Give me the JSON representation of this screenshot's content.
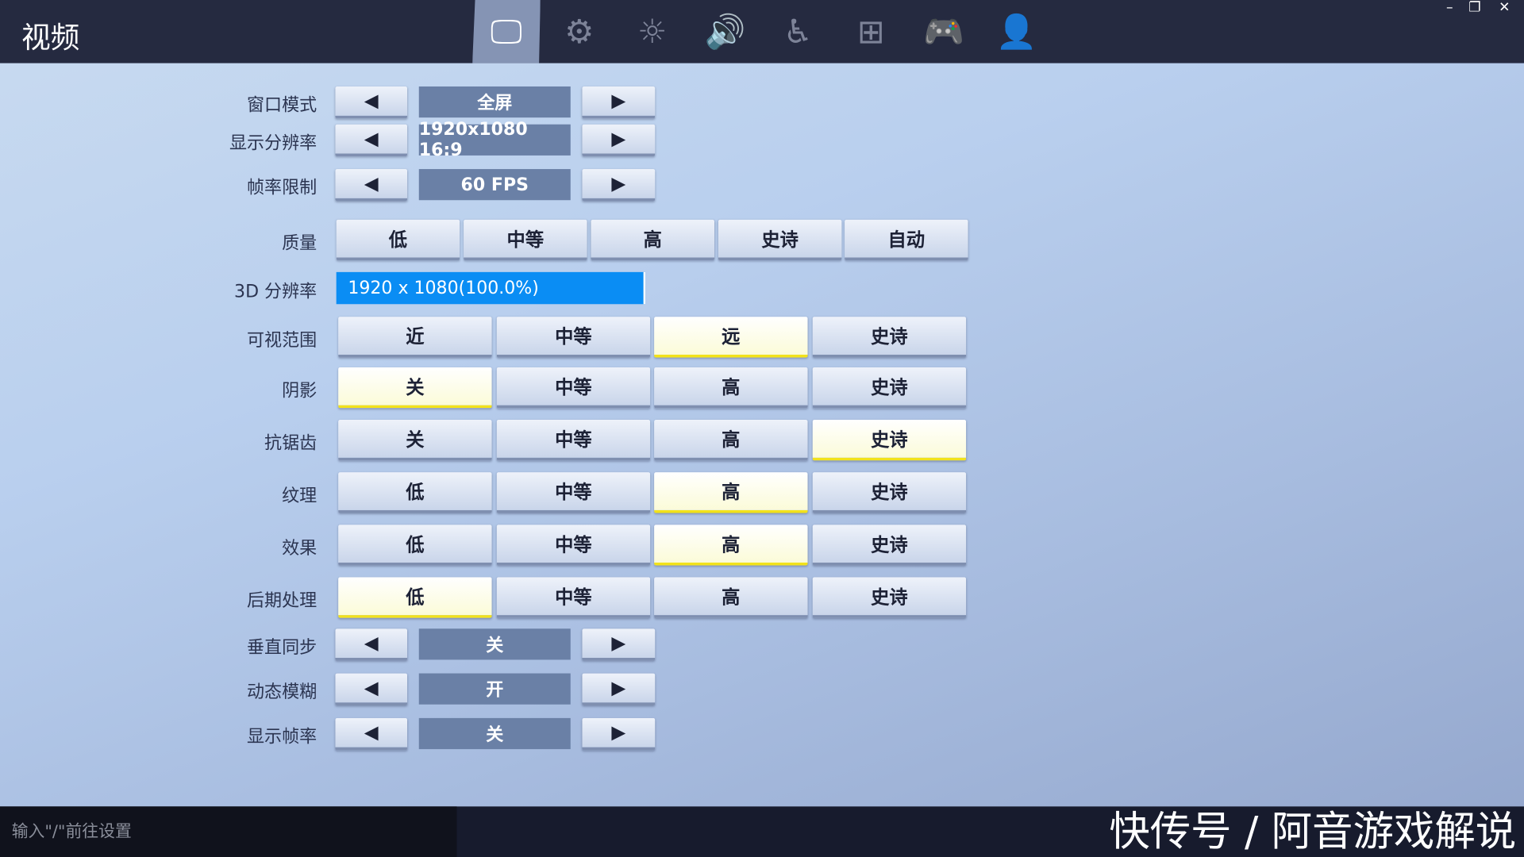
{
  "header": {
    "title": "视频",
    "tabs": [
      {
        "icon": "monitor-icon",
        "glyph": "🖵",
        "active": true
      },
      {
        "icon": "gear-icon",
        "glyph": "⚙"
      },
      {
        "icon": "brightness-icon",
        "glyph": "☼"
      },
      {
        "icon": "speaker-icon",
        "glyph": "🔊"
      },
      {
        "icon": "accessibility-icon",
        "glyph": "♿"
      },
      {
        "icon": "input-icon",
        "glyph": "⊞"
      },
      {
        "icon": "gamepad-icon",
        "glyph": "🎮"
      },
      {
        "icon": "account-icon",
        "glyph": "👤"
      }
    ],
    "window": {
      "minimize": "–",
      "restore": "❐",
      "close": "✕"
    }
  },
  "arrows": {
    "left": "◀",
    "right": "▶"
  },
  "settings_top": [
    {
      "label": "窗口模式",
      "value": "全屏"
    },
    {
      "label": "显示分辨率",
      "value": "1920x1080 16:9"
    },
    {
      "label": "帧率限制",
      "value": "60 FPS"
    }
  ],
  "quality": {
    "label": "质量",
    "options": [
      "低",
      "中等",
      "高",
      "史诗",
      "自动"
    ]
  },
  "res3d": {
    "label": "3D 分辨率",
    "value": "1920 x 1080(100.0%)",
    "percent": 100
  },
  "grid_settings": [
    {
      "label": "可视范围",
      "options": [
        "近",
        "中等",
        "远",
        "史诗"
      ],
      "selected": 2
    },
    {
      "label": "阴影",
      "options": [
        "关",
        "中等",
        "高",
        "史诗"
      ],
      "selected": 0
    },
    {
      "label": "抗锯齿",
      "options": [
        "关",
        "中等",
        "高",
        "史诗"
      ],
      "selected": 3
    },
    {
      "label": "纹理",
      "options": [
        "低",
        "中等",
        "高",
        "史诗"
      ],
      "selected": 2
    },
    {
      "label": "效果",
      "options": [
        "低",
        "中等",
        "高",
        "史诗"
      ],
      "selected": 2
    },
    {
      "label": "后期处理",
      "options": [
        "低",
        "中等",
        "高",
        "史诗"
      ],
      "selected": 0
    }
  ],
  "settings_bottom": [
    {
      "label": "垂直同步",
      "value": "关"
    },
    {
      "label": "动态模糊",
      "value": "开"
    },
    {
      "label": "显示帧率",
      "value": "关"
    }
  ],
  "footer": {
    "command_placeholder": "输入\"/\"前往设置",
    "watermark": "快传号 / 阿音游戏解说"
  }
}
